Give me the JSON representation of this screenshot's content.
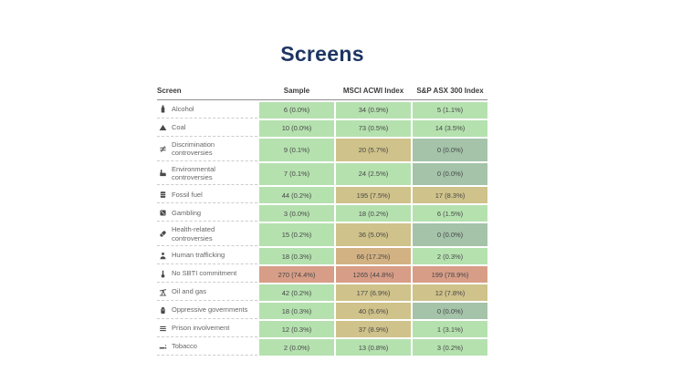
{
  "title": "Screens",
  "colors": {
    "green": "#b5e1af",
    "tan": "#cfc28a",
    "tan_dark": "#d2b183",
    "sage": "#a4c3a9",
    "red": "#d79d87",
    "title_navy": "#1d3563"
  },
  "chart_data": {
    "type": "table",
    "title": "Screens",
    "columns": [
      "Screen",
      "Sample",
      "MSCI ACWI Index",
      "S&P ASX 300 Index"
    ],
    "rows": [
      {
        "icon": "bottle",
        "label": "Alcohol",
        "cells": [
          {
            "text": "6 (0.0%)",
            "tone": "green"
          },
          {
            "text": "34 (0.9%)",
            "tone": "green"
          },
          {
            "text": "5 (1.1%)",
            "tone": "green"
          }
        ]
      },
      {
        "icon": "coal",
        "label": "Coal",
        "cells": [
          {
            "text": "10 (0.0%)",
            "tone": "green"
          },
          {
            "text": "73 (0.5%)",
            "tone": "green"
          },
          {
            "text": "14 (3.5%)",
            "tone": "green"
          }
        ]
      },
      {
        "icon": "scales",
        "label": "Discrimination controversies",
        "cells": [
          {
            "text": "9 (0.1%)",
            "tone": "green"
          },
          {
            "text": "20 (5.7%)",
            "tone": "tan"
          },
          {
            "text": "0 (0.0%)",
            "tone": "sage"
          }
        ]
      },
      {
        "icon": "factory",
        "label": "Environmental controversies",
        "cells": [
          {
            "text": "7 (0.1%)",
            "tone": "green"
          },
          {
            "text": "24 (2.5%)",
            "tone": "green"
          },
          {
            "text": "0 (0.0%)",
            "tone": "sage"
          }
        ]
      },
      {
        "icon": "barrel",
        "label": "Fossil fuel",
        "cells": [
          {
            "text": "44 (0.2%)",
            "tone": "green"
          },
          {
            "text": "195 (7.5%)",
            "tone": "tan"
          },
          {
            "text": "17 (8.3%)",
            "tone": "tan"
          }
        ]
      },
      {
        "icon": "dice",
        "label": "Gambling",
        "cells": [
          {
            "text": "3 (0.0%)",
            "tone": "green"
          },
          {
            "text": "18 (0.2%)",
            "tone": "green"
          },
          {
            "text": "6 (1.5%)",
            "tone": "green"
          }
        ]
      },
      {
        "icon": "pill",
        "label": "Health-related controversies",
        "cells": [
          {
            "text": "15 (0.2%)",
            "tone": "green"
          },
          {
            "text": "36 (5.0%)",
            "tone": "tan"
          },
          {
            "text": "0 (0.0%)",
            "tone": "sage"
          }
        ]
      },
      {
        "icon": "person",
        "label": "Human trafficking",
        "cells": [
          {
            "text": "18 (0.3%)",
            "tone": "green"
          },
          {
            "text": "66 (17.2%)",
            "tone": "tan_dark"
          },
          {
            "text": "2 (0.3%)",
            "tone": "green"
          }
        ]
      },
      {
        "icon": "thermometer",
        "label": "No SBTI commitment",
        "cells": [
          {
            "text": "270 (74.4%)",
            "tone": "red"
          },
          {
            "text": "1265 (44.8%)",
            "tone": "red"
          },
          {
            "text": "199 (78.9%)",
            "tone": "red"
          }
        ]
      },
      {
        "icon": "pumpjack",
        "label": "Oil and gas",
        "cells": [
          {
            "text": "42 (0.2%)",
            "tone": "green"
          },
          {
            "text": "177 (6.9%)",
            "tone": "tan"
          },
          {
            "text": "12 (7.8%)",
            "tone": "tan"
          }
        ]
      },
      {
        "icon": "fist",
        "label": "Oppressive governments",
        "cells": [
          {
            "text": "18 (0.3%)",
            "tone": "green"
          },
          {
            "text": "40 (5.6%)",
            "tone": "tan"
          },
          {
            "text": "0 (0.0%)",
            "tone": "sage"
          }
        ]
      },
      {
        "icon": "bars",
        "label": "Prison involvement",
        "cells": [
          {
            "text": "12 (0.3%)",
            "tone": "green"
          },
          {
            "text": "37 (8.9%)",
            "tone": "tan"
          },
          {
            "text": "1 (3.1%)",
            "tone": "green"
          }
        ]
      },
      {
        "icon": "cigarette",
        "label": "Tobacco",
        "cells": [
          {
            "text": "2 (0.0%)",
            "tone": "green"
          },
          {
            "text": "13 (0.8%)",
            "tone": "green"
          },
          {
            "text": "3 (0.2%)",
            "tone": "green"
          }
        ]
      }
    ]
  }
}
